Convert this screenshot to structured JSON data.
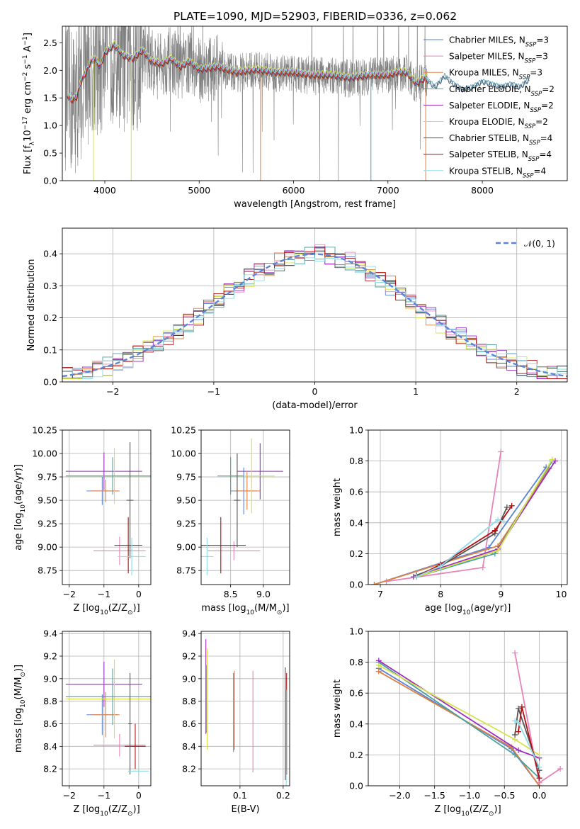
{
  "figure": {
    "title": "PLATE=1090, MJD=52903, FIBERID=0336, z=0.062",
    "legend_entries": [
      {
        "label": "Chabrier MILES, N",
        "sub": "SSP",
        "tail": "=3",
        "color": "#5b84d6"
      },
      {
        "label": "Salpeter MILES, N",
        "sub": "SSP",
        "tail": "=3",
        "color": "#e683b9"
      },
      {
        "label": "Kroupa MILES, N",
        "sub": "SSP",
        "tail": "=3",
        "color": "#e08040"
      },
      {
        "label": "Chabrier ELODIE, N",
        "sub": "SSP",
        "tail": "=2",
        "color": "#4aa0a0"
      },
      {
        "label": "Salpeter ELODIE, N",
        "sub": "SSP",
        "tail": "=2",
        "color": "#9b2fbf"
      },
      {
        "label": "Kroupa ELODIE, N",
        "sub": "SSP",
        "tail": "=2",
        "color": "#d6e24a"
      },
      {
        "label": "Chabrier STELIB, N",
        "sub": "SSP",
        "tail": "=4",
        "color": "#555555"
      },
      {
        "label": "Salpeter STELIB, N",
        "sub": "SSP",
        "tail": "=4",
        "color": "#b01010"
      },
      {
        "label": "Kroupa STELIB, N",
        "sub": "SSP",
        "tail": "=4",
        "color": "#8fdde8"
      }
    ],
    "colors": {
      "data": "#808080",
      "grid": "#b0b0b0",
      "normal": "#5b84d6"
    }
  },
  "chart_data": [
    {
      "id": "spectrum",
      "type": "line",
      "xlabel": "wavelength [Angstrom, rest frame]",
      "ylabel_parts": [
        "Flux [f",
        "λ",
        "10",
        "−17",
        " erg cm",
        "−2",
        " s",
        "−1",
        " A",
        "−1",
        "]"
      ],
      "xlim": [
        3550,
        8900
      ],
      "ylim": [
        0,
        2.8
      ],
      "xticks": [
        4000,
        5000,
        6000,
        7000,
        8000
      ],
      "yticks": [
        0.0,
        0.5,
        1.0,
        1.5,
        2.0,
        2.5
      ],
      "ytick_labels": [
        "0.0",
        "0.5",
        "1.0",
        "1.5",
        "2.0",
        "2.5"
      ],
      "model_continuum": [
        [
          3600,
          1.55
        ],
        [
          3650,
          1.45
        ],
        [
          3700,
          1.5
        ],
        [
          3750,
          1.8
        ],
        [
          3800,
          1.95
        ],
        [
          3850,
          2.15
        ],
        [
          3900,
          2.2
        ],
        [
          3950,
          2.05
        ],
        [
          4000,
          2.3
        ],
        [
          4100,
          2.45
        ],
        [
          4200,
          2.25
        ],
        [
          4300,
          2.2
        ],
        [
          4400,
          2.35
        ],
        [
          4500,
          2.15
        ],
        [
          4600,
          2.1
        ],
        [
          4700,
          2.2
        ],
        [
          4800,
          2.05
        ],
        [
          4900,
          2.15
        ],
        [
          5000,
          2.0
        ],
        [
          5200,
          2.05
        ],
        [
          5400,
          1.95
        ],
        [
          5600,
          2.0
        ],
        [
          5800,
          1.95
        ],
        [
          6000,
          1.95
        ],
        [
          6200,
          1.9
        ],
        [
          6400,
          1.9
        ],
        [
          6600,
          1.85
        ],
        [
          6800,
          1.9
        ],
        [
          7000,
          1.9
        ],
        [
          7100,
          1.95
        ],
        [
          7200,
          1.95
        ],
        [
          7300,
          1.75
        ],
        [
          7400,
          1.85
        ],
        [
          7500,
          1.7
        ],
        [
          7600,
          1.9
        ],
        [
          7700,
          1.75
        ],
        [
          7800,
          1.65
        ],
        [
          7900,
          1.7
        ],
        [
          8000,
          1.8
        ],
        [
          8200,
          1.7
        ],
        [
          8300,
          1.75
        ],
        [
          8400,
          1.7
        ],
        [
          8500,
          1.85
        ]
      ],
      "series_offsets": [
        0.0,
        0.02,
        -0.01,
        0.01,
        0.03,
        0.06,
        -0.02,
        0.0,
        0.04
      ],
      "grid": false
    },
    {
      "id": "residuals",
      "type": "histogram",
      "xlabel": "(data-model)/error",
      "ylabel": "Normed distribution",
      "xlim": [
        -2.5,
        2.5
      ],
      "ylim": [
        0,
        0.48
      ],
      "xticks": [
        -2,
        -1,
        0,
        1,
        2
      ],
      "xtick_labels": [
        "−2",
        "−1",
        "0",
        "1",
        "2"
      ],
      "yticks": [
        0.0,
        0.1,
        0.2,
        0.3,
        0.4
      ],
      "ytick_labels": [
        "0.0",
        "0.1",
        "0.2",
        "0.3",
        "0.4"
      ],
      "bin_width": 0.1,
      "legend_label": "𝒩(0, 1)",
      "legend_position": "top-right",
      "grid": true
    },
    {
      "id": "age-vs-Z",
      "type": "errorbar",
      "xlabel_parts": [
        "Z [log",
        "10",
        "(Z/Z",
        "⊙",
        ")]"
      ],
      "ylabel_parts": [
        "age  [log",
        "10",
        "(age/yr)]"
      ],
      "xlim": [
        -2.2,
        0.35
      ],
      "ylim": [
        8.6,
        10.25
      ],
      "xticks": [
        -2,
        -1,
        0
      ],
      "xtick_labels": [
        "−2",
        "−1",
        "0"
      ],
      "yticks": [
        8.75,
        9.0,
        9.25,
        9.5,
        9.75,
        10.0,
        10.25
      ],
      "ytick_labels": [
        "8.75",
        "9.00",
        "9.25",
        "9.50",
        "9.75",
        "10.00",
        "10.25"
      ],
      "points": [
        {
          "s": 0,
          "x": -1.05,
          "xe": 0.45,
          "y": 9.6,
          "ye": 0.15
        },
        {
          "s": 2,
          "x": -0.95,
          "xe": 0.4,
          "y": 9.6,
          "ye": 0.12
        },
        {
          "s": 4,
          "x": -1.0,
          "xe": 1.1,
          "y": 9.81,
          "ye": 0.2
        },
        {
          "s": 5,
          "x": -0.7,
          "xe": 1.4,
          "y": 9.76,
          "ye": 0.3
        },
        {
          "s": 3,
          "x": -0.75,
          "xe": 1.35,
          "y": 9.76,
          "ye": 0.2
        },
        {
          "s": 1,
          "x": -0.55,
          "xe": 0.75,
          "y": 8.96,
          "ye": 0.15
        },
        {
          "s": 7,
          "x": -0.3,
          "xe": 0.4,
          "y": 9.02,
          "ye": 0.3
        },
        {
          "s": 6,
          "x": -0.25,
          "xe": 0.1,
          "y": 9.5,
          "ye": 0.62
        },
        {
          "s": 8,
          "x": -0.2,
          "xe": 0.4,
          "y": 8.9,
          "ye": 0.2
        }
      ],
      "grid": true
    },
    {
      "id": "age-vs-mass",
      "type": "errorbar",
      "xlabel_parts": [
        "mass [log",
        "10",
        "(M/M",
        "⊙",
        ")]"
      ],
      "xlim": [
        8.05,
        9.4
      ],
      "ylim": [
        8.6,
        10.25
      ],
      "xticks": [
        8.5,
        9.0
      ],
      "xtick_labels": [
        "8.5",
        "9.0"
      ],
      "yticks": [
        8.75,
        9.0,
        9.25,
        9.5,
        9.75,
        10.0,
        10.25
      ],
      "ytick_labels": [
        "8.75",
        "9.00",
        "9.25",
        "9.50",
        "9.75",
        "10.00",
        "10.25"
      ],
      "points": [
        {
          "s": 0,
          "x": 8.7,
          "xe": 0.2,
          "y": 9.6,
          "ye": 0.25
        },
        {
          "s": 2,
          "x": 8.75,
          "xe": 0.2,
          "y": 9.6,
          "ye": 0.2
        },
        {
          "s": 4,
          "x": 8.95,
          "xe": 0.35,
          "y": 9.81,
          "ye": 0.3
        },
        {
          "s": 5,
          "x": 8.82,
          "xe": 0.35,
          "y": 9.76,
          "ye": 0.4
        },
        {
          "s": 3,
          "x": 8.5,
          "xe": 0.2,
          "y": 9.76,
          "ye": 0.2
        },
        {
          "s": 1,
          "x": 8.55,
          "xe": 0.4,
          "y": 8.96,
          "ye": 0.1
        },
        {
          "s": 7,
          "x": 8.35,
          "xe": 0.38,
          "y": 9.02,
          "ye": 0.3
        },
        {
          "s": 6,
          "x": 8.6,
          "xe": 0.05,
          "y": 9.5,
          "ye": 0.5
        },
        {
          "s": 8,
          "x": 8.14,
          "xe": 0.1,
          "y": 8.9,
          "ye": 0.2
        }
      ],
      "grid": true
    },
    {
      "id": "mass-weight-vs-age",
      "type": "line",
      "xlabel_parts": [
        "age  [log",
        "10",
        "(age/yr)]"
      ],
      "ylabel": "mass weight",
      "xlim": [
        6.8,
        10.1
      ],
      "ylim": [
        0,
        1.0
      ],
      "xticks": [
        7,
        8,
        9,
        10
      ],
      "xtick_labels": [
        "7",
        "8",
        "9",
        "10"
      ],
      "yticks": [
        0.0,
        0.2,
        0.4,
        0.6,
        0.8,
        1.0
      ],
      "ytick_labels": [
        "0.0",
        "0.2",
        "0.4",
        "0.6",
        "0.8",
        "1.0"
      ],
      "series": [
        {
          "s": 0,
          "x": [
            6.9,
            8.8,
            9.75
          ],
          "y": [
            0.0,
            0.24,
            0.76
          ]
        },
        {
          "s": 1,
          "x": [
            7.1,
            8.7,
            9.0
          ],
          "y": [
            0.02,
            0.11,
            0.86
          ]
        },
        {
          "s": 2,
          "x": [
            6.9,
            8.95,
            9.8
          ],
          "y": [
            0.0,
            0.25,
            0.75
          ]
        },
        {
          "s": 3,
          "x": [
            7.6,
            8.9,
            9.85
          ],
          "y": [
            0.05,
            0.2,
            0.8
          ]
        },
        {
          "s": 4,
          "x": [
            7.55,
            8.95,
            9.9
          ],
          "y": [
            0.05,
            0.23,
            0.8
          ]
        },
        {
          "s": 5,
          "x": [
            7.6,
            8.95,
            9.85
          ],
          "y": [
            0.05,
            0.22,
            0.81
          ]
        },
        {
          "s": 6,
          "x": [
            7.6,
            8.0,
            8.9,
            9.1
          ],
          "y": [
            0.06,
            0.12,
            0.33,
            0.5
          ]
        },
        {
          "s": 7,
          "x": [
            7.6,
            8.0,
            8.9,
            9.18
          ],
          "y": [
            0.05,
            0.13,
            0.35,
            0.51
          ]
        },
        {
          "s": 8,
          "x": [
            7.6,
            8.0,
            8.95,
            9.05
          ],
          "y": [
            0.05,
            0.12,
            0.42,
            0.41
          ]
        }
      ],
      "grid": true
    },
    {
      "id": "mass-vs-Z",
      "type": "errorbar",
      "xlabel_parts": [
        "Z [log",
        "10",
        "(Z/Z",
        "⊙",
        ")]"
      ],
      "ylabel_parts": [
        "mass [log",
        "10",
        "(M/M",
        "⊙",
        ")]"
      ],
      "xlim": [
        -2.2,
        0.35
      ],
      "ylim": [
        8.05,
        9.42
      ],
      "xticks": [
        -2,
        -1,
        0
      ],
      "xtick_labels": [
        "−2",
        "−1",
        "0"
      ],
      "yticks": [
        8.2,
        8.4,
        8.6,
        8.8,
        9.0,
        9.2,
        9.4
      ],
      "ytick_labels": [
        "8.2",
        "8.4",
        "8.6",
        "8.8",
        "9.0",
        "9.2",
        "9.4"
      ],
      "points": [
        {
          "s": 0,
          "x": -1.05,
          "xe": 0.45,
          "y": 8.68,
          "ye": 0.18
        },
        {
          "s": 2,
          "x": -0.95,
          "xe": 0.4,
          "y": 8.68,
          "ye": 0.2
        },
        {
          "s": 4,
          "x": -1.0,
          "xe": 1.1,
          "y": 8.95,
          "ye": 0.2
        },
        {
          "s": 5,
          "x": -0.7,
          "xe": 1.4,
          "y": 8.82,
          "ye": 0.35
        },
        {
          "s": 3,
          "x": -0.75,
          "xe": 1.35,
          "y": 8.84,
          "ye": 0.25
        },
        {
          "s": 1,
          "x": -0.55,
          "xe": 0.75,
          "y": 8.41,
          "ye": 0.1
        },
        {
          "s": 7,
          "x": -0.1,
          "xe": 0.3,
          "y": 8.4,
          "ye": 0.2
        },
        {
          "s": 6,
          "x": -0.25,
          "xe": 0.05,
          "y": 8.6,
          "ye": 0.45
        },
        {
          "s": 8,
          "x": 0.0,
          "xe": 0.3,
          "y": 8.18,
          "ye": 0.05
        }
      ],
      "grid": true
    },
    {
      "id": "mass-vs-EBV",
      "type": "errorbar",
      "xlabel": "E(B-V)",
      "xlim": [
        0.01,
        0.215
      ],
      "ylim": [
        8.05,
        9.42
      ],
      "xticks": [
        0.1,
        0.2
      ],
      "xtick_labels": [
        "0.1",
        "0.2"
      ],
      "yticks": [
        8.2,
        8.4,
        8.6,
        8.8,
        9.0,
        9.2,
        9.4
      ],
      "ytick_labels": [
        "8.2",
        "8.4",
        "8.6",
        "8.8",
        "9.0",
        "9.2",
        "9.4"
      ],
      "points": [
        {
          "s": 0,
          "x": 0.085,
          "xe": 0,
          "y": 8.7,
          "ye": 0.35
        },
        {
          "s": 2,
          "x": 0.087,
          "xe": 0,
          "y": 8.72,
          "ye": 0.35
        },
        {
          "s": 4,
          "x": 0.021,
          "xe": 0,
          "y": 8.93,
          "ye": 0.42
        },
        {
          "s": 5,
          "x": 0.024,
          "xe": 0,
          "y": 8.82,
          "ye": 0.45
        },
        {
          "s": 3,
          "x": 0.022,
          "xe": 0,
          "y": 8.82,
          "ye": 0.3
        },
        {
          "s": 1,
          "x": 0.13,
          "xe": 0,
          "y": 8.62,
          "ye": 0.45
        },
        {
          "s": 7,
          "x": 0.208,
          "xe": 0,
          "y": 8.6,
          "ye": 0.45
        },
        {
          "s": 6,
          "x": 0.205,
          "xe": 0,
          "y": 8.6,
          "ye": 0.5
        },
        {
          "s": 8,
          "x": 0.207,
          "xe": 0,
          "y": 8.4,
          "ye": 0.5
        }
      ],
      "grid": true
    },
    {
      "id": "mass-weight-vs-Z",
      "type": "line",
      "xlabel_parts": [
        "Z [log",
        "10",
        "(Z/Z",
        "⊙",
        ")]"
      ],
      "ylabel": "mass weight",
      "xlim": [
        -2.45,
        0.4
      ],
      "ylim": [
        0,
        1.0
      ],
      "xticks": [
        -2.0,
        -1.5,
        -1.0,
        -0.5,
        0.0
      ],
      "xtick_labels": [
        "−2.0",
        "−1.5",
        "−1.0",
        "−0.5",
        "0.0"
      ],
      "yticks": [
        0.0,
        0.2,
        0.4,
        0.6,
        0.8,
        1.0
      ],
      "ytick_labels": [
        "0.0",
        "0.2",
        "0.4",
        "0.6",
        "0.8",
        "1.0"
      ],
      "series": [
        {
          "s": 0,
          "x": [
            -2.3,
            -0.4,
            0.0
          ],
          "y": [
            0.76,
            0.24,
            0.0
          ]
        },
        {
          "s": 1,
          "x": [
            -0.35,
            0.0,
            0.3
          ],
          "y": [
            0.86,
            0.02,
            0.11
          ]
        },
        {
          "s": 2,
          "x": [
            -2.3,
            -0.4,
            0.0
          ],
          "y": [
            0.74,
            0.25,
            0.0
          ]
        },
        {
          "s": 3,
          "x": [
            -2.3,
            -0.35,
            0.0
          ],
          "y": [
            0.8,
            0.2,
            0.05
          ]
        },
        {
          "s": 4,
          "x": [
            -2.3,
            -0.3,
            0.0
          ],
          "y": [
            0.81,
            0.23,
            0.18
          ]
        },
        {
          "s": 5,
          "x": [
            -2.3,
            -0.35,
            0.0
          ],
          "y": [
            0.78,
            0.3,
            0.2
          ]
        },
        {
          "s": 6,
          "x": [
            -0.35,
            -0.3,
            0.0
          ],
          "y": [
            0.33,
            0.5,
            0.1
          ]
        },
        {
          "s": 7,
          "x": [
            -0.3,
            -0.25,
            0.0
          ],
          "y": [
            0.35,
            0.51,
            0.05
          ]
        },
        {
          "s": 8,
          "x": [
            -0.35,
            -0.3,
            0.0
          ],
          "y": [
            0.42,
            0.41,
            0.12
          ]
        }
      ],
      "grid": true
    }
  ]
}
